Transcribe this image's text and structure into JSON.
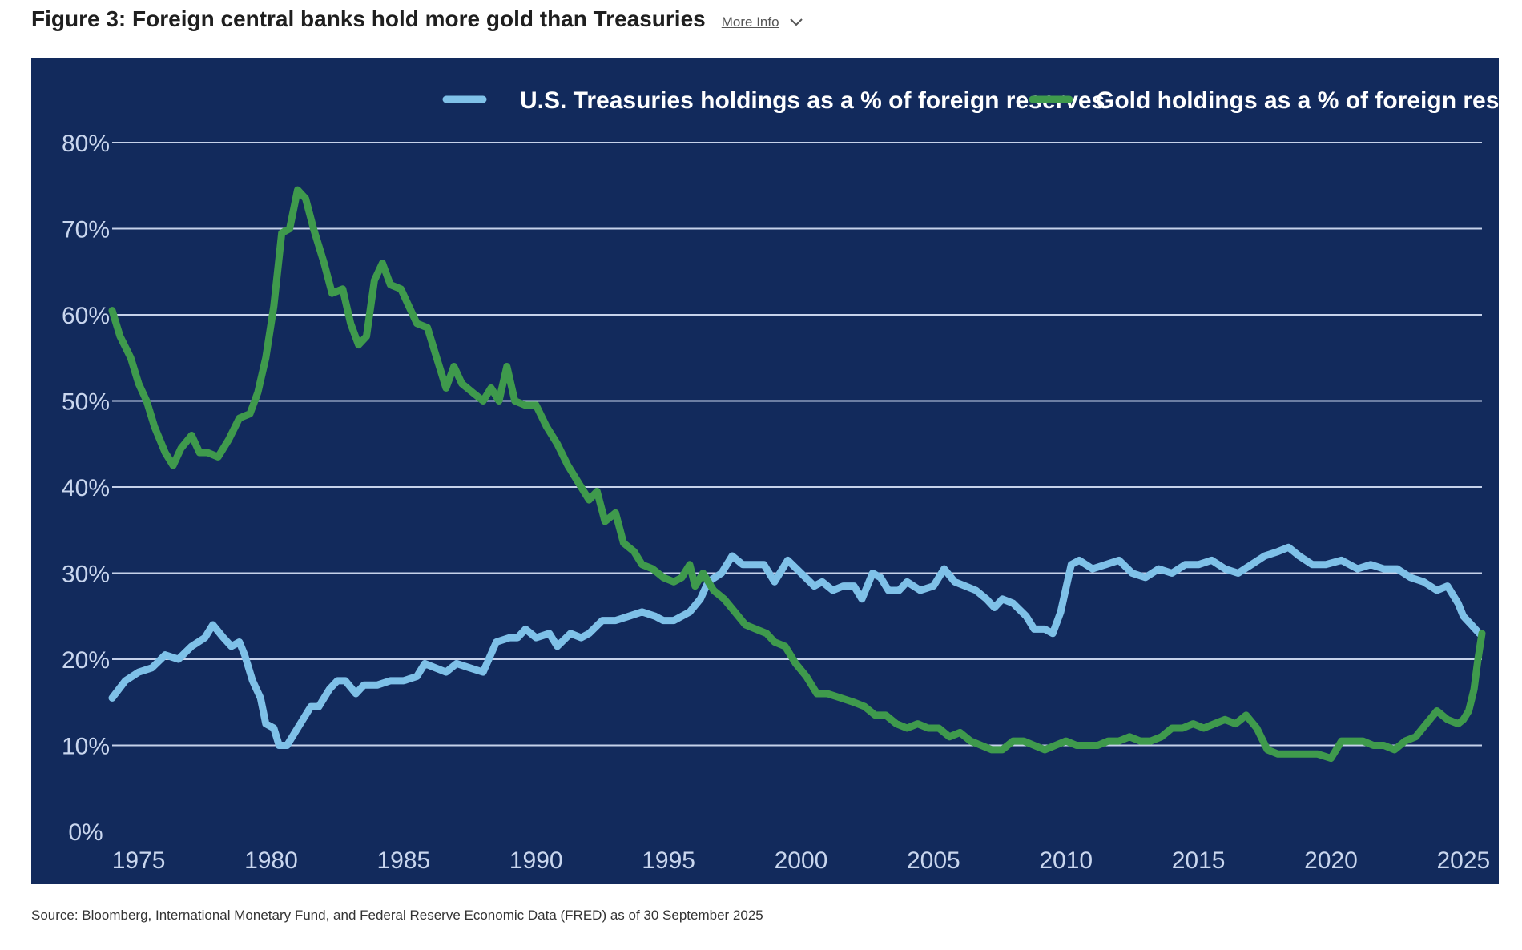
{
  "header": {
    "title": "Figure 3: Foreign central banks hold more gold than Treasuries",
    "more_info_label": "More Info",
    "more_info_icon": "chevron-down-icon"
  },
  "source": "Source: Bloomberg, International Monetary Fund, and Federal Reserve Economic Data (FRED) as of 30 September 2025",
  "colors": {
    "panel_background": "#122a5c",
    "gridline": "#c6d2ea",
    "treasuries": "#7fc1e8",
    "gold": "#3f9a4c"
  },
  "chart_data": {
    "type": "line",
    "title": "",
    "xlabel": "",
    "ylabel": "",
    "xlim": [
      1974,
      2025.7
    ],
    "ylim": [
      0,
      80
    ],
    "grid": true,
    "legend_position": "top-right",
    "x_ticks": [
      1975,
      1980,
      1985,
      1990,
      1995,
      2000,
      2005,
      2010,
      2015,
      2020,
      2025
    ],
    "x_tick_labels": [
      "1975",
      "1980",
      "1985",
      "1990",
      "1995",
      "2000",
      "2005",
      "2010",
      "2015",
      "2020",
      "2025"
    ],
    "y_ticks": [
      0,
      10,
      20,
      30,
      40,
      50,
      60,
      70,
      80
    ],
    "y_tick_labels": [
      "0%",
      "10%",
      "20%",
      "30%",
      "40%",
      "50%",
      "60%",
      "70%",
      "80%"
    ],
    "series": [
      {
        "name": "U.S. Treasuries holdings as a % of foreign reserves",
        "color": "#7fc1e8",
        "points": [
          [
            1974.0,
            15.5
          ],
          [
            1974.5,
            17.5
          ],
          [
            1975.0,
            18.5
          ],
          [
            1975.5,
            19.0
          ],
          [
            1976.0,
            20.5
          ],
          [
            1976.5,
            20.0
          ],
          [
            1977.0,
            21.5
          ],
          [
            1977.5,
            22.5
          ],
          [
            1977.8,
            24.0
          ],
          [
            1978.2,
            22.5
          ],
          [
            1978.5,
            21.5
          ],
          [
            1978.8,
            22.0
          ],
          [
            1979.0,
            20.5
          ],
          [
            1979.3,
            17.5
          ],
          [
            1979.6,
            15.5
          ],
          [
            1979.8,
            12.5
          ],
          [
            1980.1,
            12.0
          ],
          [
            1980.3,
            10.0
          ],
          [
            1980.6,
            10.0
          ],
          [
            1981.0,
            12.0
          ],
          [
            1981.5,
            14.5
          ],
          [
            1981.8,
            14.5
          ],
          [
            1982.2,
            16.5
          ],
          [
            1982.5,
            17.5
          ],
          [
            1982.8,
            17.5
          ],
          [
            1983.2,
            16.0
          ],
          [
            1983.5,
            17.0
          ],
          [
            1984.0,
            17.0
          ],
          [
            1984.5,
            17.5
          ],
          [
            1985.0,
            17.5
          ],
          [
            1985.5,
            18.0
          ],
          [
            1985.8,
            19.5
          ],
          [
            1986.2,
            19.0
          ],
          [
            1986.6,
            18.5
          ],
          [
            1987.0,
            19.5
          ],
          [
            1987.5,
            19.0
          ],
          [
            1988.0,
            18.5
          ],
          [
            1988.5,
            22.0
          ],
          [
            1989.0,
            22.5
          ],
          [
            1989.3,
            22.5
          ],
          [
            1989.6,
            23.5
          ],
          [
            1990.0,
            22.5
          ],
          [
            1990.5,
            23.0
          ],
          [
            1990.8,
            21.5
          ],
          [
            1991.3,
            23.0
          ],
          [
            1991.7,
            22.5
          ],
          [
            1992.0,
            23.0
          ],
          [
            1992.5,
            24.5
          ],
          [
            1993.0,
            24.5
          ],
          [
            1993.5,
            25.0
          ],
          [
            1994.0,
            25.5
          ],
          [
            1994.5,
            25.0
          ],
          [
            1994.8,
            24.5
          ],
          [
            1995.2,
            24.5
          ],
          [
            1995.5,
            25.0
          ],
          [
            1995.8,
            25.5
          ],
          [
            1996.2,
            27.0
          ],
          [
            1996.5,
            29.0
          ],
          [
            1997.0,
            30.0
          ],
          [
            1997.4,
            32.0
          ],
          [
            1997.8,
            31.0
          ],
          [
            1998.2,
            31.0
          ],
          [
            1998.6,
            31.0
          ],
          [
            1999.0,
            29.0
          ],
          [
            1999.5,
            31.5
          ],
          [
            2000.0,
            30.0
          ],
          [
            2000.5,
            28.5
          ],
          [
            2000.8,
            29.0
          ],
          [
            2001.2,
            28.0
          ],
          [
            2001.6,
            28.5
          ],
          [
            2002.0,
            28.5
          ],
          [
            2002.3,
            27.0
          ],
          [
            2002.7,
            30.0
          ],
          [
            2003.0,
            29.5
          ],
          [
            2003.3,
            28.0
          ],
          [
            2003.7,
            28.0
          ],
          [
            2004.0,
            29.0
          ],
          [
            2004.5,
            28.0
          ],
          [
            2005.0,
            28.5
          ],
          [
            2005.4,
            30.5
          ],
          [
            2005.8,
            29.0
          ],
          [
            2006.2,
            28.5
          ],
          [
            2006.6,
            28.0
          ],
          [
            2007.0,
            27.0
          ],
          [
            2007.3,
            26.0
          ],
          [
            2007.6,
            27.0
          ],
          [
            2008.0,
            26.5
          ],
          [
            2008.5,
            25.0
          ],
          [
            2008.8,
            23.5
          ],
          [
            2009.2,
            23.5
          ],
          [
            2009.5,
            23.0
          ],
          [
            2009.8,
            25.5
          ],
          [
            2010.2,
            31.0
          ],
          [
            2010.5,
            31.5
          ],
          [
            2011.0,
            30.5
          ],
          [
            2011.5,
            31.0
          ],
          [
            2012.0,
            31.5
          ],
          [
            2012.5,
            30.0
          ],
          [
            2013.0,
            29.5
          ],
          [
            2013.5,
            30.5
          ],
          [
            2014.0,
            30.0
          ],
          [
            2014.5,
            31.0
          ],
          [
            2015.0,
            31.0
          ],
          [
            2015.5,
            31.5
          ],
          [
            2016.0,
            30.5
          ],
          [
            2016.5,
            30.0
          ],
          [
            2017.0,
            31.0
          ],
          [
            2017.5,
            32.0
          ],
          [
            2018.0,
            32.5
          ],
          [
            2018.4,
            33.0
          ],
          [
            2018.8,
            32.0
          ],
          [
            2019.3,
            31.0
          ],
          [
            2019.8,
            31.0
          ],
          [
            2020.4,
            31.5
          ],
          [
            2021.0,
            30.5
          ],
          [
            2021.5,
            31.0
          ],
          [
            2022.0,
            30.5
          ],
          [
            2022.5,
            30.5
          ],
          [
            2023.0,
            29.5
          ],
          [
            2023.5,
            29.0
          ],
          [
            2024.0,
            28.0
          ],
          [
            2024.4,
            28.5
          ],
          [
            2024.8,
            26.5
          ],
          [
            2025.0,
            25.0
          ],
          [
            2025.3,
            24.0
          ],
          [
            2025.6,
            23.0
          ]
        ]
      },
      {
        "name": "Gold holdings as a % of foreign reserves",
        "color": "#3f9a4c",
        "points": [
          [
            1974.0,
            60.5
          ],
          [
            1974.3,
            57.5
          ],
          [
            1974.7,
            55.0
          ],
          [
            1975.0,
            52.0
          ],
          [
            1975.3,
            50.0
          ],
          [
            1975.6,
            47.0
          ],
          [
            1976.0,
            44.0
          ],
          [
            1976.3,
            42.5
          ],
          [
            1976.6,
            44.5
          ],
          [
            1977.0,
            46.0
          ],
          [
            1977.3,
            44.0
          ],
          [
            1977.6,
            44.0
          ],
          [
            1978.0,
            43.5
          ],
          [
            1978.4,
            45.5
          ],
          [
            1978.8,
            48.0
          ],
          [
            1979.2,
            48.5
          ],
          [
            1979.5,
            51.0
          ],
          [
            1979.8,
            55.0
          ],
          [
            1980.1,
            61.0
          ],
          [
            1980.4,
            69.5
          ],
          [
            1980.7,
            70.0
          ],
          [
            1981.0,
            74.5
          ],
          [
            1981.3,
            73.5
          ],
          [
            1981.6,
            70.0
          ],
          [
            1982.0,
            66.0
          ],
          [
            1982.3,
            62.5
          ],
          [
            1982.7,
            63.0
          ],
          [
            1983.0,
            59.0
          ],
          [
            1983.3,
            56.5
          ],
          [
            1983.6,
            57.5
          ],
          [
            1983.9,
            64.0
          ],
          [
            1984.2,
            66.0
          ],
          [
            1984.5,
            63.5
          ],
          [
            1984.9,
            63.0
          ],
          [
            1985.2,
            61.0
          ],
          [
            1985.5,
            59.0
          ],
          [
            1985.9,
            58.5
          ],
          [
            1986.2,
            55.5
          ],
          [
            1986.6,
            51.5
          ],
          [
            1986.9,
            54.0
          ],
          [
            1987.2,
            52.0
          ],
          [
            1987.6,
            51.0
          ],
          [
            1988.0,
            50.0
          ],
          [
            1988.3,
            51.5
          ],
          [
            1988.6,
            50.0
          ],
          [
            1988.9,
            54.0
          ],
          [
            1989.2,
            50.0
          ],
          [
            1989.6,
            49.5
          ],
          [
            1990.0,
            49.5
          ],
          [
            1990.4,
            47.0
          ],
          [
            1990.8,
            45.0
          ],
          [
            1991.2,
            42.5
          ],
          [
            1991.6,
            40.5
          ],
          [
            1992.0,
            38.5
          ],
          [
            1992.3,
            39.5
          ],
          [
            1992.6,
            36.0
          ],
          [
            1993.0,
            37.0
          ],
          [
            1993.3,
            33.5
          ],
          [
            1993.7,
            32.5
          ],
          [
            1994.0,
            31.0
          ],
          [
            1994.4,
            30.5
          ],
          [
            1994.8,
            29.5
          ],
          [
            1995.2,
            29.0
          ],
          [
            1995.5,
            29.5
          ],
          [
            1995.8,
            31.0
          ],
          [
            1996.0,
            28.5
          ],
          [
            1996.3,
            30.0
          ],
          [
            1996.7,
            28.0
          ],
          [
            1997.1,
            27.0
          ],
          [
            1997.5,
            25.5
          ],
          [
            1997.9,
            24.0
          ],
          [
            1998.3,
            23.5
          ],
          [
            1998.7,
            23.0
          ],
          [
            1999.0,
            22.0
          ],
          [
            1999.4,
            21.5
          ],
          [
            1999.8,
            19.5
          ],
          [
            2000.2,
            18.0
          ],
          [
            2000.6,
            16.0
          ],
          [
            2001.0,
            16.0
          ],
          [
            2001.5,
            15.5
          ],
          [
            2002.0,
            15.0
          ],
          [
            2002.4,
            14.5
          ],
          [
            2002.8,
            13.5
          ],
          [
            2003.2,
            13.5
          ],
          [
            2003.6,
            12.5
          ],
          [
            2004.0,
            12.0
          ],
          [
            2004.4,
            12.5
          ],
          [
            2004.8,
            12.0
          ],
          [
            2005.2,
            12.0
          ],
          [
            2005.6,
            11.0
          ],
          [
            2006.0,
            11.5
          ],
          [
            2006.4,
            10.5
          ],
          [
            2006.8,
            10.0
          ],
          [
            2007.2,
            9.5
          ],
          [
            2007.6,
            9.5
          ],
          [
            2008.0,
            10.5
          ],
          [
            2008.4,
            10.5
          ],
          [
            2008.8,
            10.0
          ],
          [
            2009.2,
            9.5
          ],
          [
            2009.6,
            10.0
          ],
          [
            2010.0,
            10.5
          ],
          [
            2010.4,
            10.0
          ],
          [
            2010.8,
            10.0
          ],
          [
            2011.2,
            10.0
          ],
          [
            2011.6,
            10.5
          ],
          [
            2012.0,
            10.5
          ],
          [
            2012.4,
            11.0
          ],
          [
            2012.8,
            10.5
          ],
          [
            2013.2,
            10.5
          ],
          [
            2013.6,
            11.0
          ],
          [
            2014.0,
            12.0
          ],
          [
            2014.4,
            12.0
          ],
          [
            2014.8,
            12.5
          ],
          [
            2015.2,
            12.0
          ],
          [
            2015.6,
            12.5
          ],
          [
            2016.0,
            13.0
          ],
          [
            2016.4,
            12.5
          ],
          [
            2016.8,
            13.5
          ],
          [
            2017.2,
            12.0
          ],
          [
            2017.6,
            9.5
          ],
          [
            2018.0,
            9.0
          ],
          [
            2018.5,
            9.0
          ],
          [
            2019.0,
            9.0
          ],
          [
            2019.5,
            9.0
          ],
          [
            2020.0,
            8.5
          ],
          [
            2020.4,
            10.5
          ],
          [
            2020.8,
            10.5
          ],
          [
            2021.2,
            10.5
          ],
          [
            2021.6,
            10.0
          ],
          [
            2022.0,
            10.0
          ],
          [
            2022.4,
            9.5
          ],
          [
            2022.8,
            10.5
          ],
          [
            2023.2,
            11.0
          ],
          [
            2023.6,
            12.5
          ],
          [
            2024.0,
            14.0
          ],
          [
            2024.4,
            13.0
          ],
          [
            2024.8,
            12.5
          ],
          [
            2025.0,
            13.0
          ],
          [
            2025.2,
            14.0
          ],
          [
            2025.4,
            16.5
          ],
          [
            2025.55,
            20.0
          ],
          [
            2025.7,
            23.0
          ]
        ]
      }
    ]
  }
}
